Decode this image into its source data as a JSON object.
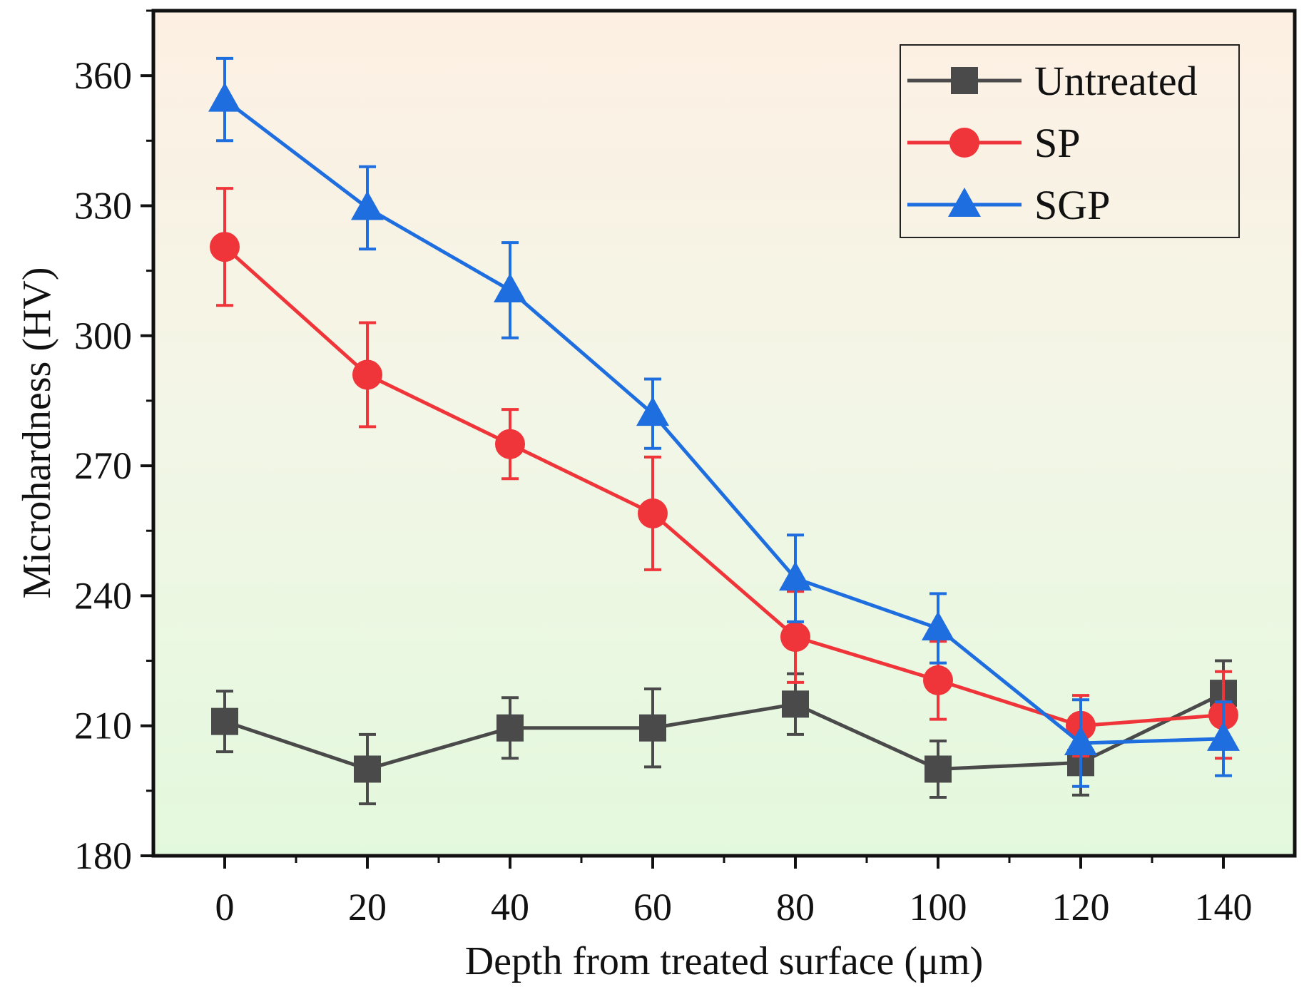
{
  "chart_data": {
    "type": "line",
    "title": "",
    "xlabel": "Depth from treated surface (μm)",
    "ylabel": "Microhardness (HV)",
    "x": [
      0,
      20,
      40,
      60,
      80,
      100,
      120,
      140
    ],
    "xlim": [
      -10,
      150
    ],
    "ylim": [
      180,
      375
    ],
    "xticks": [
      0,
      20,
      40,
      60,
      80,
      100,
      120,
      140
    ],
    "yticks": [
      180,
      210,
      240,
      270,
      300,
      330,
      360
    ],
    "xtick_labels": [
      "0",
      "20",
      "40",
      "60",
      "80",
      "100",
      "120",
      "140"
    ],
    "ytick_labels": [
      "180",
      "210",
      "240",
      "270",
      "300",
      "330",
      "360"
    ],
    "grid": false,
    "legend_position": "top-right",
    "background": "vertical gradient from light peach (top) to light green (bottom)",
    "series": [
      {
        "name": "Untreated",
        "color": "#4a4a4a",
        "marker": "square",
        "values": [
          211,
          200,
          209.5,
          209.5,
          215,
          200,
          201.5,
          217.5
        ],
        "errors": [
          7,
          8,
          7,
          9,
          7,
          6.5,
          7.5,
          7.5
        ]
      },
      {
        "name": "SP",
        "color": "#f0353a",
        "marker": "circle",
        "values": [
          320.5,
          291,
          275,
          259,
          230.5,
          220.5,
          210,
          212.5
        ],
        "errors": [
          13.5,
          12,
          8,
          13,
          10.5,
          9,
          7,
          10
        ]
      },
      {
        "name": "SGP",
        "color": "#1e6ee0",
        "marker": "triangle",
        "values": [
          354.5,
          329.5,
          310.5,
          282,
          244,
          232.5,
          206,
          207
        ],
        "errors": [
          9.5,
          9.5,
          11,
          8,
          10,
          8,
          10,
          8.5
        ]
      }
    ]
  }
}
